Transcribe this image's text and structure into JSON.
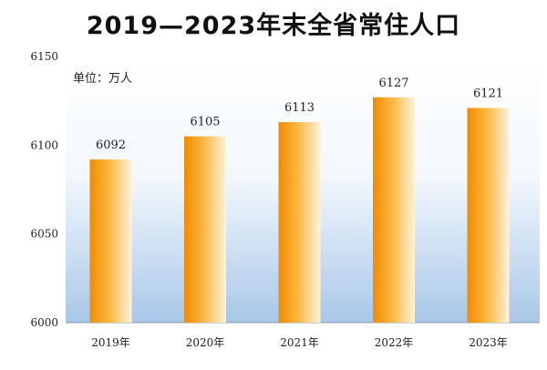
{
  "chart_data": {
    "type": "bar",
    "title": "2019—2023年末全省常住人口",
    "unit_label": "单位：万人",
    "categories": [
      "2019年",
      "2020年",
      "2021年",
      "2022年",
      "2023年"
    ],
    "values": [
      6092,
      6105,
      6113,
      6127,
      6121
    ],
    "value_labels": [
      "6092",
      "6105",
      "6113",
      "6127",
      "6121"
    ],
    "ylim": [
      6000,
      6150
    ],
    "yticks": [
      6000,
      6050,
      6100,
      6150
    ],
    "ytick_labels": [
      "6000",
      "6050",
      "6100",
      "6150"
    ],
    "grid": false,
    "legend": "none",
    "colors": {
      "bar_dark": "#f08c00",
      "bar_mid": "#f9b640",
      "bar_light": "#fff3dc",
      "background_top": "#ffffff",
      "background_bottom": "#a9c7e8"
    }
  }
}
